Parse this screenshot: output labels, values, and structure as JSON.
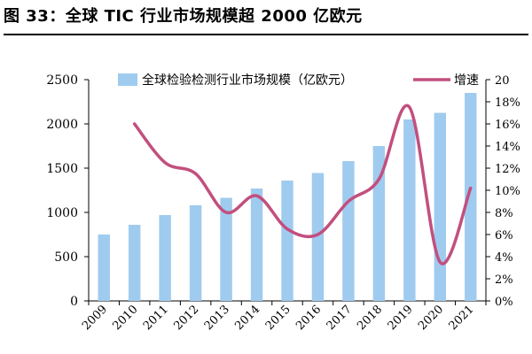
{
  "figure": {
    "title": "图 33：全球 TIC 行业市场规模超 2000 亿欧元"
  },
  "chart_data": {
    "type": "bar",
    "categories": [
      "2009",
      "2010",
      "2011",
      "2012",
      "2013",
      "2014",
      "2015",
      "2016",
      "2017",
      "2018",
      "2019",
      "2020",
      "2021"
    ],
    "series": [
      {
        "name": "全球检验检测行业市场规模（亿欧元）",
        "type": "bar",
        "axis": "left",
        "color": "#9fcbef",
        "values": [
          750,
          860,
          970,
          1080,
          1165,
          1270,
          1360,
          1445,
          1580,
          1750,
          2050,
          2125,
          2350
        ]
      },
      {
        "name": "增速",
        "type": "line",
        "axis": "right",
        "color": "#c24f7e",
        "values": [
          null,
          16.0,
          12.5,
          11.5,
          8.0,
          9.5,
          6.5,
          6.0,
          9.0,
          11.0,
          17.5,
          3.5,
          10.2
        ]
      }
    ],
    "y_left": {
      "min": 0,
      "max": 2500,
      "ticks": [
        "0",
        "500",
        "1000",
        "1500",
        "2000",
        "2500"
      ]
    },
    "y_right": {
      "min": 0,
      "max": 20,
      "ticks": [
        "0%",
        "2%",
        "4%",
        "6%",
        "8%",
        "10%",
        "12%",
        "14%",
        "16%",
        "18%",
        "20"
      ]
    },
    "xlabel": "",
    "ylabel": "",
    "grid": false,
    "legend_position": "top-right"
  }
}
